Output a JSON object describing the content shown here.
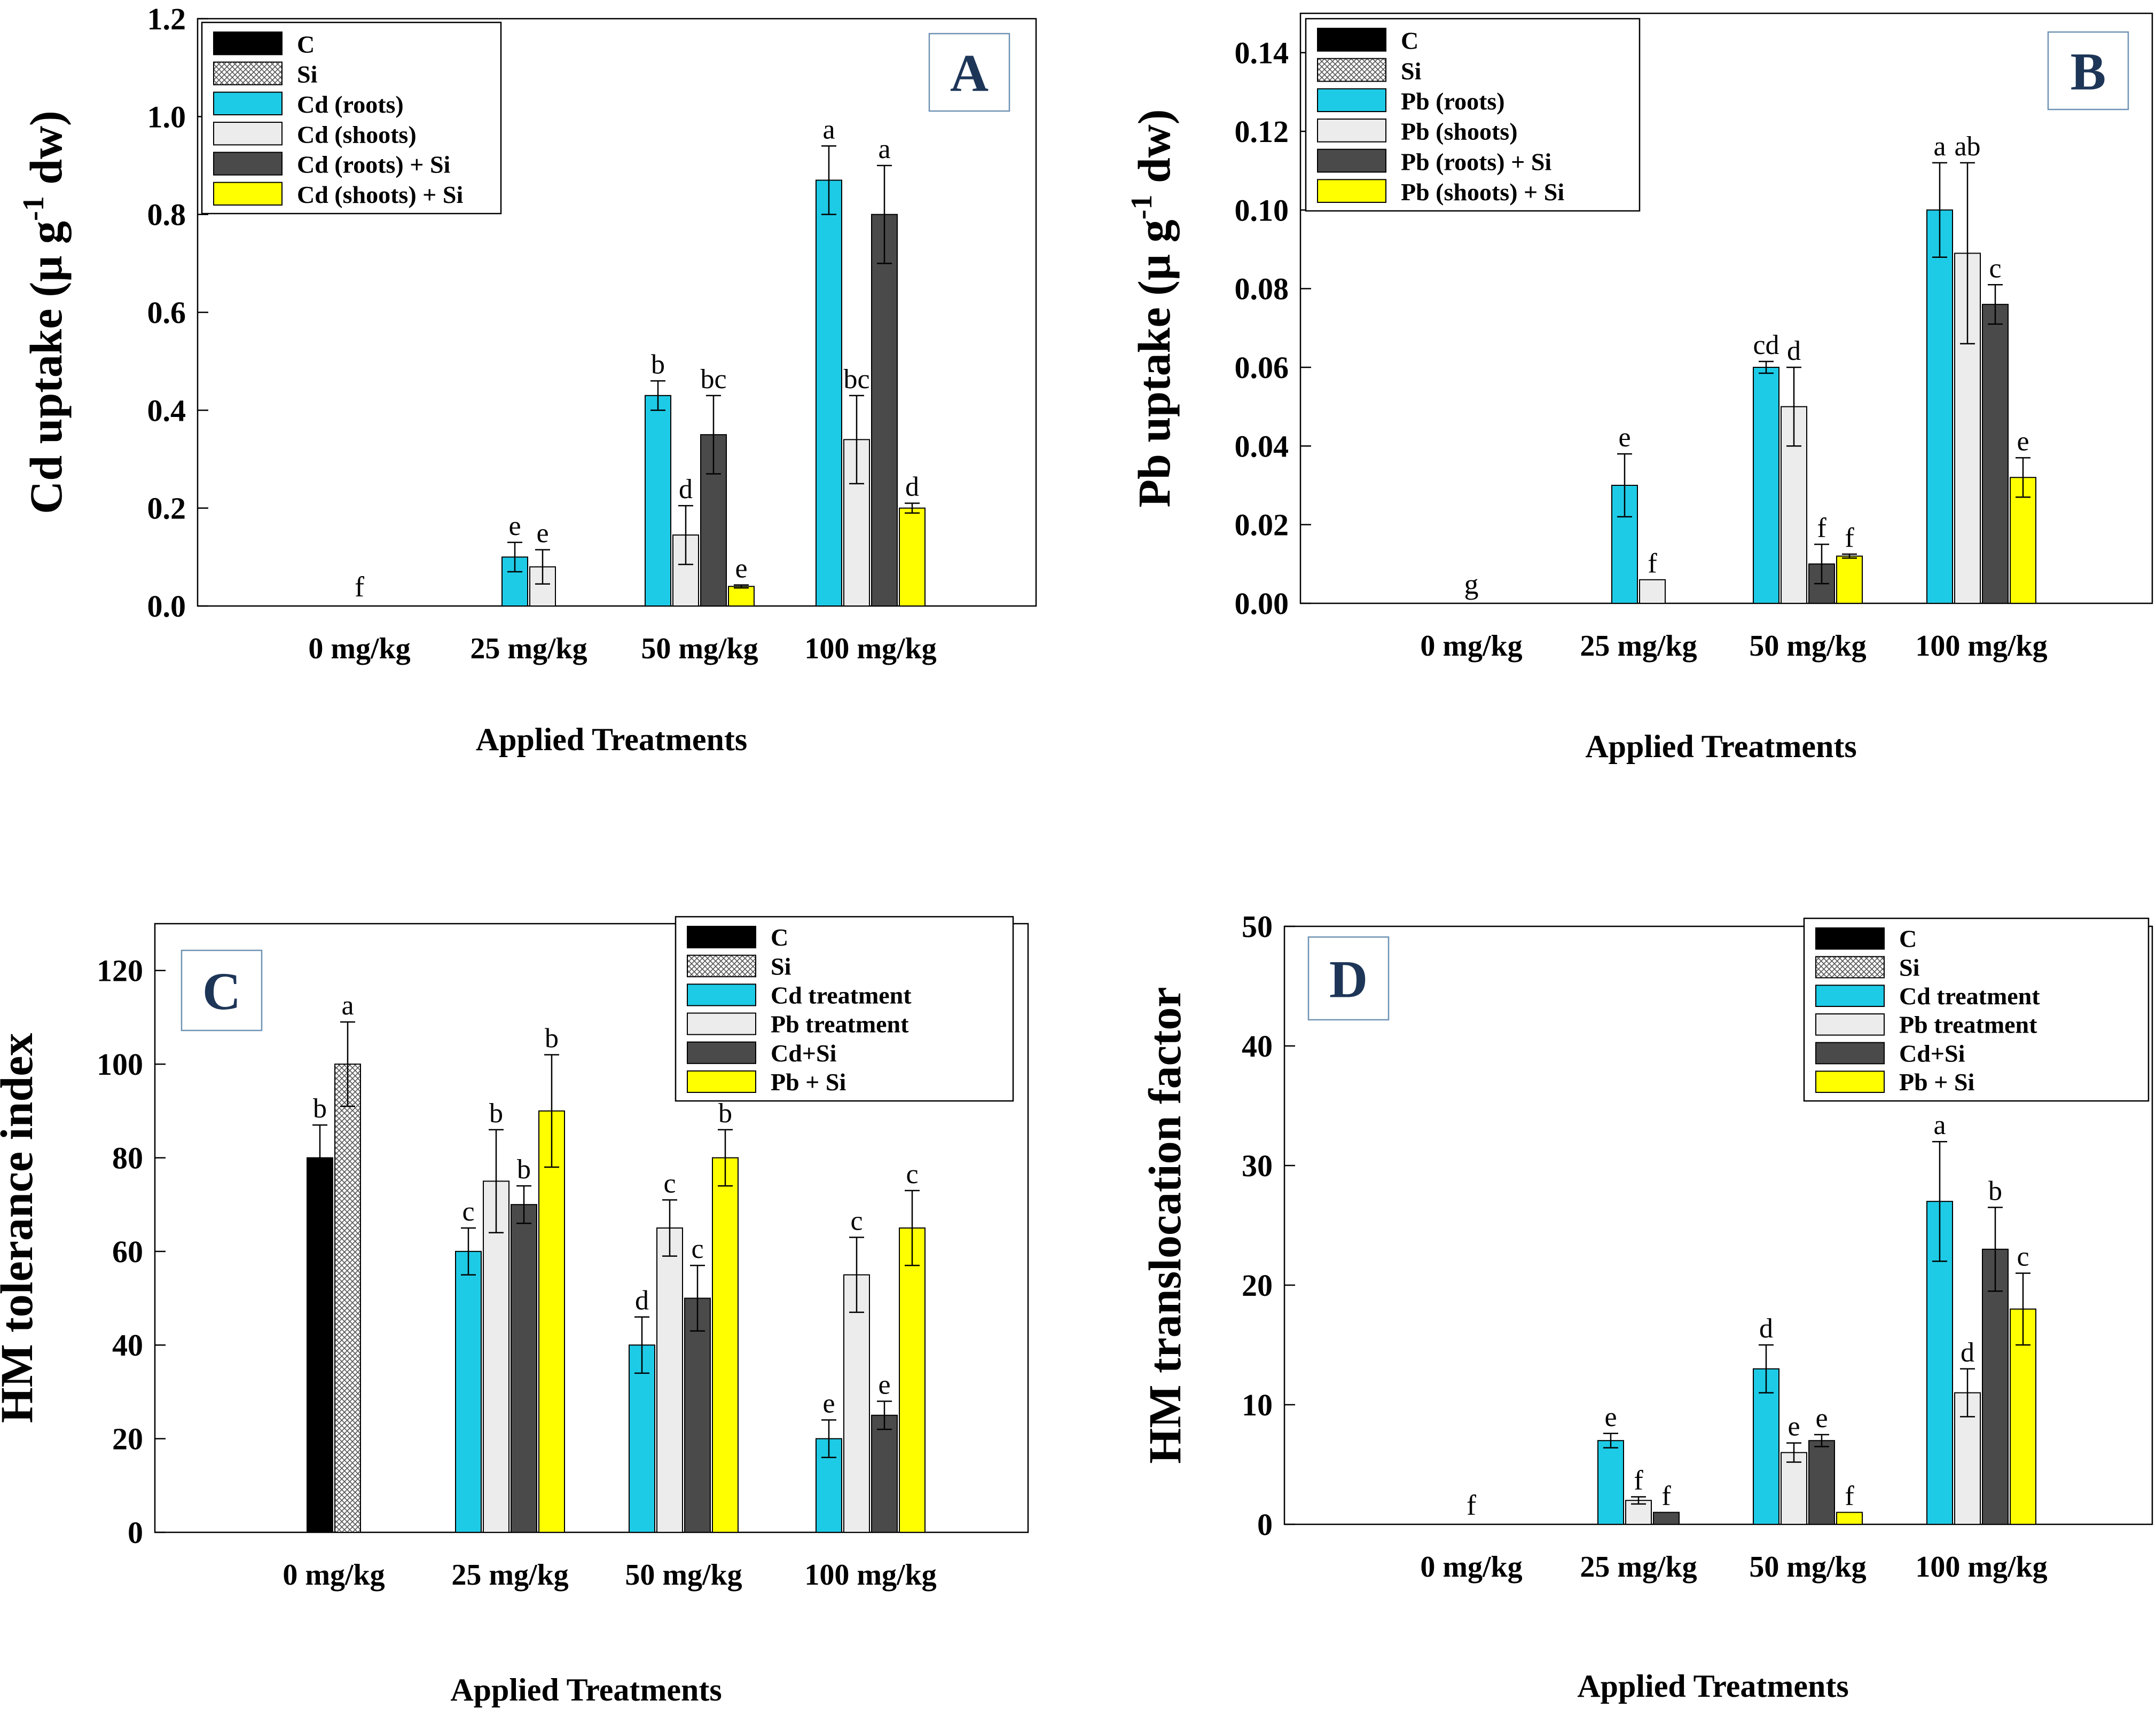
{
  "series_colors": {
    "C": "#000000",
    "Si": "#cfcfcf",
    "s3": "#1ecbe6",
    "s4": "#ececec",
    "s5": "#4a4a4a",
    "s6": "#ffff00"
  },
  "chart_data": [
    {
      "panel": "A",
      "type": "bar",
      "ylabel": "Cd uptake (µ g-1 dw)",
      "ylabel_parts": [
        "Cd uptake (µ g",
        "-1",
        " dw)"
      ],
      "xlabel": "Applied Treatments",
      "categories": [
        "0 mg/kg",
        "25 mg/kg",
        "50 mg/kg",
        "100 mg/kg"
      ],
      "ylim": [
        0,
        1.2
      ],
      "yticks": [
        "0.0",
        "0.2",
        "0.4",
        "0.6",
        "0.8",
        "1.0",
        "1.2"
      ],
      "legend_position": "top-left",
      "zero_label": "f",
      "series": [
        {
          "name": "C",
          "values": [
            0,
            null,
            null,
            null
          ],
          "errors": [
            0,
            null,
            null,
            null
          ],
          "letters": [
            "",
            null,
            null,
            null
          ]
        },
        {
          "name": "Si",
          "values": [
            0,
            null,
            null,
            null
          ],
          "errors": [
            0,
            null,
            null,
            null
          ],
          "letters": [
            "",
            null,
            null,
            null
          ]
        },
        {
          "name": "Cd (roots)",
          "values": [
            null,
            0.1,
            0.43,
            0.87
          ],
          "errors": [
            null,
            0.03,
            0.03,
            0.07
          ],
          "letters": [
            null,
            "e",
            "b",
            "a"
          ]
        },
        {
          "name": "Cd (shoots)",
          "values": [
            null,
            0.08,
            0.145,
            0.34
          ],
          "errors": [
            null,
            0.035,
            0.06,
            0.09
          ],
          "letters": [
            null,
            "e",
            "d",
            "bc"
          ]
        },
        {
          "name": "Cd (roots) + Si",
          "values": [
            null,
            null,
            0.35,
            0.8
          ],
          "errors": [
            null,
            null,
            0.08,
            0.1
          ],
          "letters": [
            null,
            null,
            "bc",
            "a"
          ]
        },
        {
          "name": "Cd (shoots) + Si",
          "values": [
            null,
            null,
            0.04,
            0.2
          ],
          "errors": [
            null,
            null,
            0.003,
            0.01
          ],
          "letters": [
            null,
            null,
            "e",
            "d"
          ]
        }
      ]
    },
    {
      "panel": "B",
      "type": "bar",
      "ylabel": "Pb uptake (µ g-1 dw)",
      "ylabel_parts": [
        "Pb uptake (µ g",
        "-1",
        " dw)"
      ],
      "xlabel": "Applied Treatments",
      "categories": [
        "0 mg/kg",
        "25 mg/kg",
        "50 mg/kg",
        "100 mg/kg"
      ],
      "ylim": [
        0,
        0.15
      ],
      "yticks": [
        "0.00",
        "0.02",
        "0.04",
        "0.06",
        "0.08",
        "0.10",
        "0.12",
        "0.14"
      ],
      "legend_position": "top-left",
      "zero_label": "g",
      "series": [
        {
          "name": "C",
          "values": [
            0,
            null,
            null,
            null
          ],
          "errors": [
            0,
            null,
            null,
            null
          ],
          "letters": [
            "",
            null,
            null,
            null
          ]
        },
        {
          "name": "Si",
          "values": [
            0,
            null,
            null,
            null
          ],
          "errors": [
            0,
            null,
            null,
            null
          ],
          "letters": [
            "",
            null,
            null,
            null
          ]
        },
        {
          "name": "Pb (roots)",
          "values": [
            null,
            0.03,
            0.06,
            0.1
          ],
          "errors": [
            null,
            0.008,
            0.0015,
            0.012
          ],
          "letters": [
            null,
            "e",
            "cd",
            "a"
          ]
        },
        {
          "name": "Pb (shoots)",
          "values": [
            null,
            0.006,
            0.05,
            0.089
          ],
          "errors": [
            null,
            0,
            0.01,
            0.023
          ],
          "letters": [
            null,
            "f",
            "d",
            "ab"
          ]
        },
        {
          "name": "Pb (roots) + Si",
          "values": [
            null,
            null,
            0.01,
            0.076
          ],
          "errors": [
            null,
            null,
            0.005,
            0.005
          ],
          "letters": [
            null,
            null,
            "f",
            "c"
          ]
        },
        {
          "name": "Pb (shoots) + Si",
          "values": [
            null,
            null,
            0.012,
            0.032
          ],
          "errors": [
            null,
            null,
            0.0005,
            0.005
          ],
          "letters": [
            null,
            null,
            "f",
            "e"
          ]
        }
      ]
    },
    {
      "panel": "C",
      "type": "bar",
      "ylabel": "HM tolerance index",
      "ylabel_parts": [
        "HM tolerance index",
        "",
        ""
      ],
      "xlabel": "Applied Treatments",
      "categories": [
        "0 mg/kg",
        "25 mg/kg",
        "50 mg/kg",
        "100 mg/kg"
      ],
      "ylim": [
        0,
        130
      ],
      "yticks": [
        "0",
        "20",
        "40",
        "60",
        "80",
        "100",
        "120"
      ],
      "legend_position": "top-right",
      "zero_label": "",
      "series": [
        {
          "name": "C",
          "values": [
            80,
            null,
            null,
            null
          ],
          "errors": [
            7,
            null,
            null,
            null
          ],
          "letters": [
            "b",
            null,
            null,
            null
          ]
        },
        {
          "name": "Si",
          "values": [
            100,
            null,
            null,
            null
          ],
          "errors": [
            9,
            null,
            null,
            null
          ],
          "letters": [
            "a",
            null,
            null,
            null
          ]
        },
        {
          "name": "Cd treatment",
          "values": [
            null,
            60,
            40,
            20
          ],
          "errors": [
            null,
            5,
            6,
            4
          ],
          "letters": [
            null,
            "c",
            "d",
            "e"
          ]
        },
        {
          "name": "Pb treatment",
          "values": [
            null,
            75,
            65,
            55
          ],
          "errors": [
            null,
            11,
            6,
            8
          ],
          "letters": [
            null,
            "b",
            "c",
            "c"
          ]
        },
        {
          "name": "Cd+Si",
          "values": [
            null,
            70,
            50,
            25
          ],
          "errors": [
            null,
            4,
            7,
            3
          ],
          "letters": [
            null,
            "b",
            "c",
            "e"
          ]
        },
        {
          "name": "Pb + Si",
          "values": [
            null,
            90,
            80,
            65
          ],
          "errors": [
            null,
            12,
            6,
            8
          ],
          "letters": [
            null,
            "b",
            "b",
            "c"
          ]
        }
      ]
    },
    {
      "panel": "D",
      "type": "bar",
      "ylabel": "HM translocation factor",
      "ylabel_parts": [
        "HM translocation factor",
        "",
        ""
      ],
      "xlabel": "Applied Treatments",
      "categories": [
        "0 mg/kg",
        "25 mg/kg",
        "50 mg/kg",
        "100 mg/kg"
      ],
      "ylim": [
        0,
        50
      ],
      "yticks": [
        "0",
        "10",
        "20",
        "30",
        "40",
        "50"
      ],
      "legend_position": "top-right",
      "zero_label": "f",
      "series": [
        {
          "name": "C",
          "values": [
            0,
            null,
            null,
            null
          ],
          "errors": [
            0,
            null,
            null,
            null
          ],
          "letters": [
            "",
            null,
            null,
            null
          ]
        },
        {
          "name": "Si",
          "values": [
            0,
            null,
            null,
            null
          ],
          "errors": [
            0,
            null,
            null,
            null
          ],
          "letters": [
            "",
            null,
            null,
            null
          ]
        },
        {
          "name": "Cd treatment",
          "values": [
            null,
            7,
            13,
            27
          ],
          "errors": [
            null,
            0.6,
            2,
            5
          ],
          "letters": [
            null,
            "e",
            "d",
            "a"
          ]
        },
        {
          "name": "Pb treatment",
          "values": [
            null,
            2,
            6,
            11
          ],
          "errors": [
            null,
            0.3,
            0.8,
            2
          ],
          "letters": [
            null,
            "f",
            "e",
            "d"
          ]
        },
        {
          "name": "Cd+Si",
          "values": [
            null,
            1,
            7,
            23
          ],
          "errors": [
            null,
            0,
            0.5,
            3.5
          ],
          "letters": [
            null,
            "f",
            "e",
            "b"
          ]
        },
        {
          "name": "Pb + Si",
          "values": [
            null,
            null,
            1,
            18
          ],
          "errors": [
            null,
            null,
            0,
            3
          ],
          "letters": [
            null,
            null,
            "f",
            "c"
          ]
        }
      ]
    }
  ]
}
